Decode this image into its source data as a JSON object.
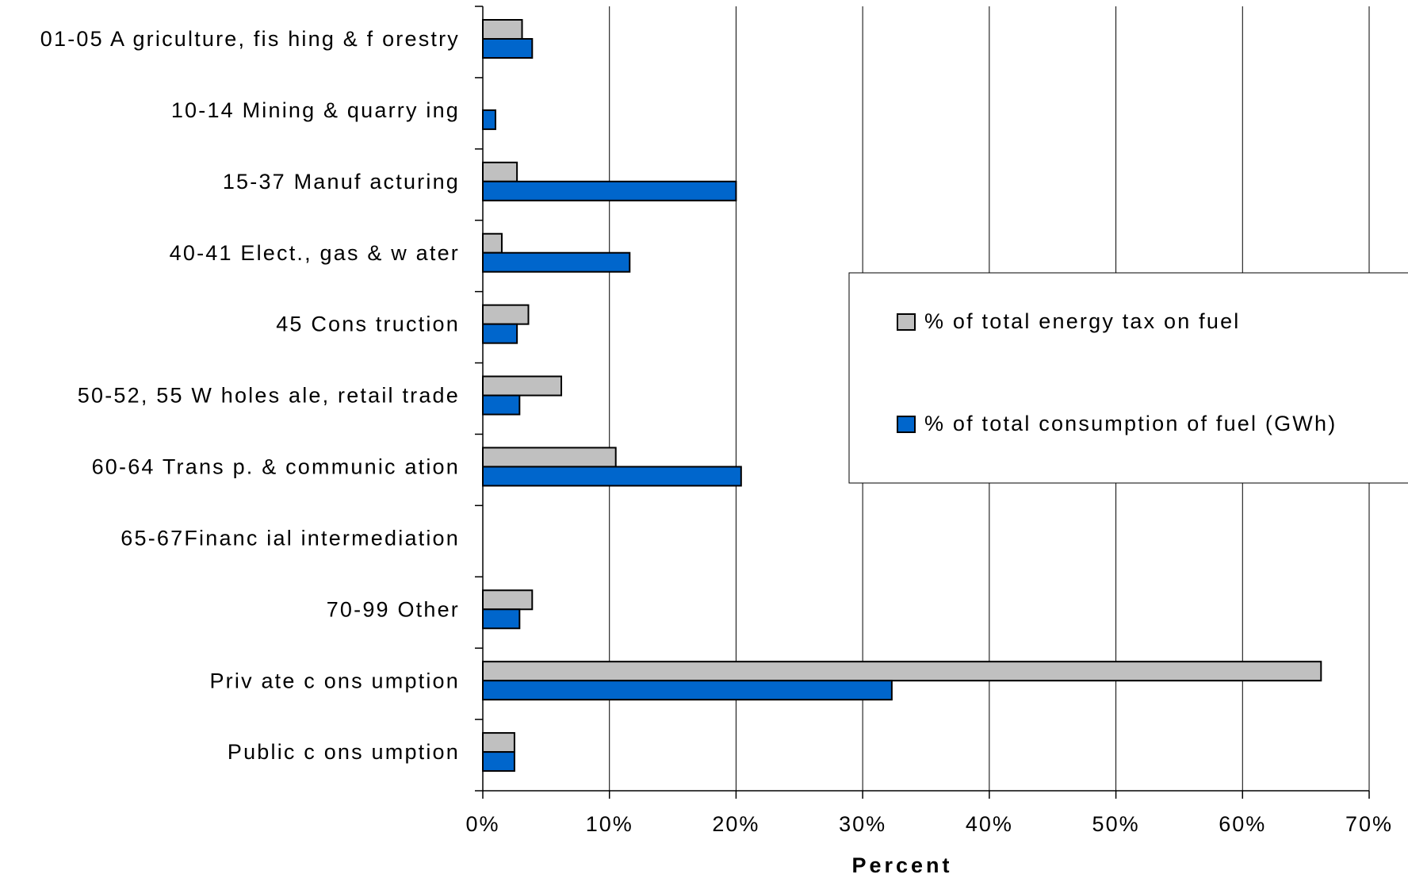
{
  "chart_data": {
    "type": "bar",
    "orientation": "horizontal",
    "categories": [
      "01-05 A griculture, fis hing & f orestry",
      "10-14 Mining & quarry ing",
      "15-37 Manuf acturing",
      "40-41 Elect., gas & w ater",
      "45 Cons truction",
      "50-52, 55 W holes ale, retail trade",
      "60-64 Trans p. & communic ation",
      "65-67Financ ial intermediation",
      "70-99 Other",
      "Priv ate c ons umption",
      "Public c ons umption"
    ],
    "series": [
      {
        "name": "% of total energy tax on fuel",
        "color": "#c0c0c0",
        "values": [
          3.1,
          0,
          2.7,
          1.5,
          3.6,
          6.2,
          10.5,
          0,
          3.9,
          66.2,
          2.5
        ]
      },
      {
        "name": "% of total consumption of fuel (GWh)",
        "color": "#0066cc",
        "values": [
          3.9,
          1.0,
          20.0,
          11.6,
          2.7,
          2.9,
          20.4,
          0,
          2.9,
          32.3,
          2.5
        ]
      }
    ],
    "xlabel": "Percent",
    "xlim": [
      0,
      70
    ],
    "xticks": [
      0,
      10,
      20,
      30,
      40,
      50,
      60,
      70
    ],
    "xtick_labels": [
      "0%",
      "10%",
      "20%",
      "30%",
      "40%",
      "50%",
      "60%",
      "70%"
    ],
    "grid": "vertical",
    "legend_position": "right"
  }
}
